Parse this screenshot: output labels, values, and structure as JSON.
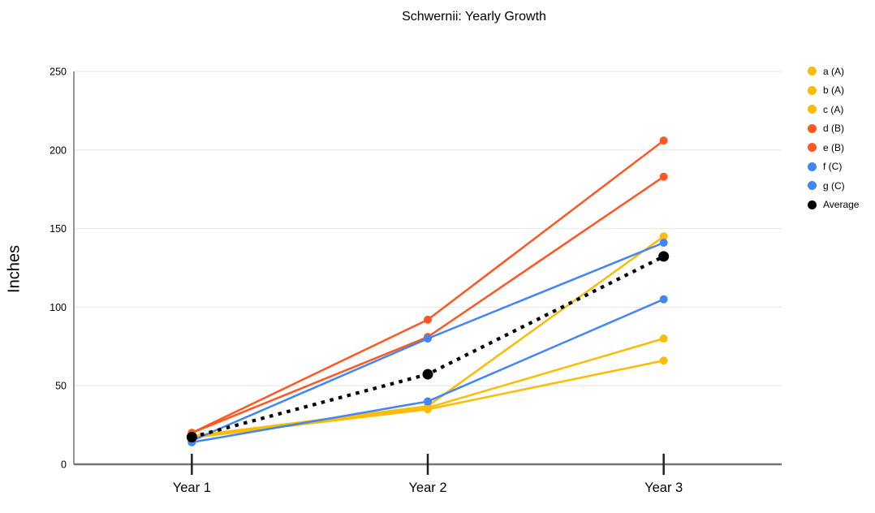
{
  "chart_data": {
    "type": "line",
    "title": "Schwernii: Yearly Growth",
    "ylabel": "Inches",
    "xlabel": "",
    "categories": [
      "Year 1",
      "Year 2",
      "Year 3"
    ],
    "series": [
      {
        "name": "a (A)",
        "color": "#FBBC04",
        "style": "solid",
        "values": [
          17,
          35,
          66
        ]
      },
      {
        "name": "b (A)",
        "color": "#FBBC04",
        "style": "solid",
        "values": [
          17,
          36,
          80
        ]
      },
      {
        "name": "c (A)",
        "color": "#FBBC04",
        "style": "solid",
        "values": [
          18,
          37,
          145
        ]
      },
      {
        "name": "d (B)",
        "color": "#FF5722",
        "style": "solid",
        "values": [
          20,
          92,
          206
        ]
      },
      {
        "name": "e (B)",
        "color": "#FF5722",
        "style": "solid",
        "values": [
          20,
          81,
          183
        ]
      },
      {
        "name": "f (C)",
        "color": "#4285F4",
        "style": "solid",
        "values": [
          15,
          80,
          141
        ]
      },
      {
        "name": "g (C)",
        "color": "#4285F4",
        "style": "solid",
        "values": [
          14,
          40,
          105
        ]
      },
      {
        "name": "Average",
        "color": "#000000",
        "style": "dotted",
        "values": [
          17.3,
          57.3,
          132.3
        ]
      }
    ],
    "ylim": [
      0,
      250
    ],
    "ytick_step": 50,
    "yticks": [
      0,
      50,
      100,
      150,
      200,
      250
    ],
    "grid": "horizontal",
    "legend_position": "right",
    "colors": {
      "group_A_yellow": "#FBBC04",
      "group_B_orange": "#FF5722",
      "group_C_blue": "#4285F4",
      "average_black": "#000000",
      "axis_line": "#757575",
      "gridline": "#E6E6E6",
      "tick_mark": "#212121",
      "text": "#000000",
      "background": "#FFFFFF"
    }
  }
}
